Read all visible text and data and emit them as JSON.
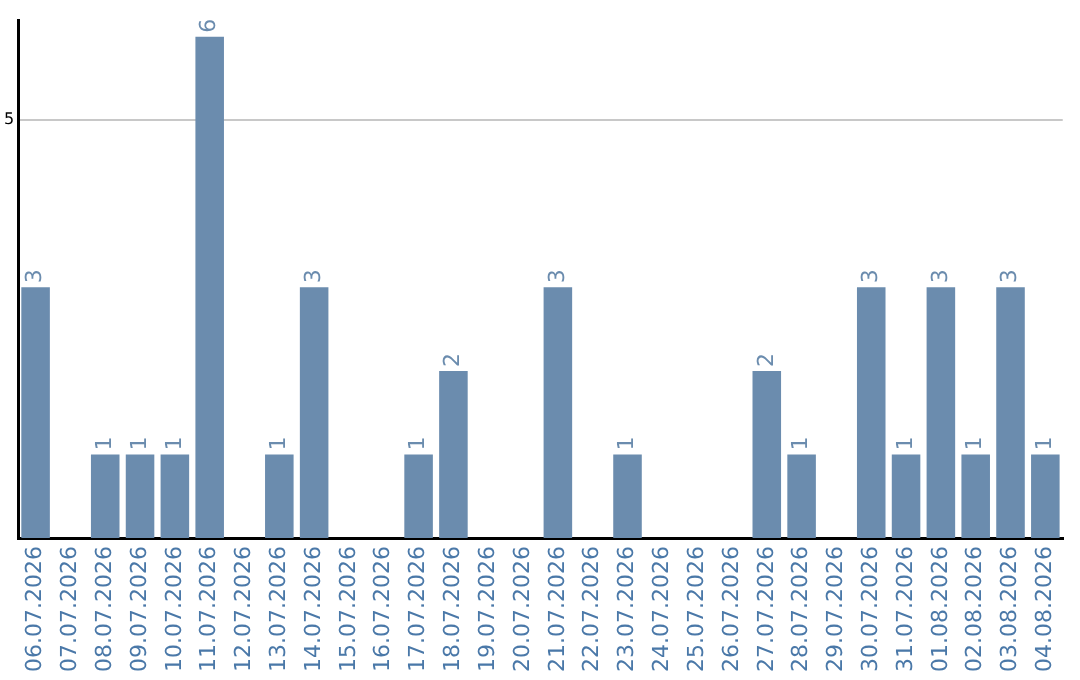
{
  "chart_data": {
    "type": "bar",
    "categories": [
      "06.07.2026",
      "07.07.2026",
      "08.07.2026",
      "09.07.2026",
      "10.07.2026",
      "11.07.2026",
      "12.07.2026",
      "13.07.2026",
      "14.07.2026",
      "15.07.2026",
      "16.07.2026",
      "17.07.2026",
      "18.07.2026",
      "19.07.2026",
      "20.07.2026",
      "21.07.2026",
      "22.07.2026",
      "23.07.2026",
      "24.07.2026",
      "25.07.2026",
      "26.07.2026",
      "27.07.2026",
      "28.07.2026",
      "29.07.2026",
      "30.07.2026",
      "31.07.2026",
      "01.08.2026",
      "02.08.2026",
      "03.08.2026",
      "04.08.2026"
    ],
    "values": [
      3,
      0,
      1,
      1,
      1,
      6,
      0,
      1,
      3,
      0,
      0,
      1,
      2,
      0,
      0,
      3,
      0,
      1,
      0,
      0,
      0,
      2,
      1,
      0,
      3,
      1,
      3,
      1,
      3,
      1
    ],
    "value_labels": [
      "3",
      null,
      "1",
      "1",
      "1",
      "6",
      null,
      "1",
      "3",
      null,
      null,
      "1",
      "2",
      null,
      null,
      "3",
      null,
      "1",
      null,
      null,
      null,
      "2",
      "1",
      null,
      "3",
      "1",
      "3",
      "1",
      "3",
      "1"
    ],
    "color": "#6b8cae",
    "ylim": [
      0,
      6.2
    ],
    "yticks": [
      5
    ],
    "grid": "y",
    "legend": false
  }
}
